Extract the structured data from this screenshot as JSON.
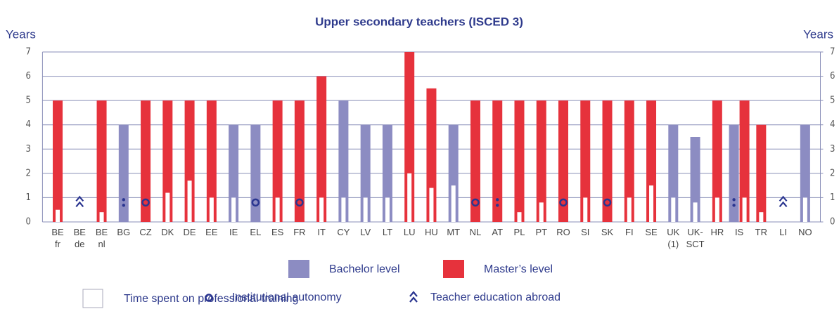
{
  "chart_data": {
    "type": "bar",
    "title": "Upper secondary teachers (ISCED 3)",
    "y_label": "Years",
    "y2_label": "Years",
    "categories": [
      [
        "BE",
        "fr"
      ],
      [
        "BE",
        "de"
      ],
      [
        "BE",
        "nl"
      ],
      [
        "BG"
      ],
      [
        "CZ"
      ],
      [
        "DK"
      ],
      [
        "DE"
      ],
      [
        "EE"
      ],
      [
        "IE"
      ],
      [
        "EL"
      ],
      [
        "ES"
      ],
      [
        "FR"
      ],
      [
        "IT"
      ],
      [
        "CY"
      ],
      [
        "LV"
      ],
      [
        "LT"
      ],
      [
        "LU"
      ],
      [
        "HU"
      ],
      [
        "MT"
      ],
      [
        "NL"
      ],
      [
        "AT"
      ],
      [
        "PL"
      ],
      [
        "PT"
      ],
      [
        "RO"
      ],
      [
        "SI"
      ],
      [
        "SK"
      ],
      [
        "FI"
      ],
      [
        "SE"
      ],
      [
        "UK",
        "(1)"
      ],
      [
        "UK-",
        "SCT"
      ],
      [
        "HR"
      ],
      [
        "IS"
      ],
      [
        "TR"
      ],
      [
        "LI"
      ],
      [
        "NO"
      ]
    ],
    "series": [
      {
        "name": "Bachelor level",
        "color": "#8c8cc2",
        "values": [
          null,
          null,
          null,
          4,
          null,
          null,
          null,
          null,
          4,
          4,
          null,
          null,
          null,
          5,
          4,
          4,
          null,
          null,
          4,
          null,
          null,
          null,
          null,
          null,
          null,
          null,
          null,
          null,
          4,
          3.5,
          null,
          4,
          null,
          null,
          4
        ]
      },
      {
        "name": "Master’s level",
        "color": "#e6323c",
        "values": [
          5,
          null,
          5,
          null,
          5,
          5,
          5,
          5,
          null,
          null,
          5,
          5,
          6,
          null,
          null,
          null,
          7,
          5.5,
          null,
          5,
          5,
          5,
          5,
          5,
          5,
          5,
          5,
          5,
          null,
          null,
          5,
          5,
          4,
          null,
          null
        ]
      }
    ],
    "training": {
      "name": "Time spent on professional training",
      "color": "#ffffff",
      "values": [
        0.5,
        null,
        0.4,
        null,
        null,
        1.2,
        1.7,
        1,
        1,
        null,
        1,
        null,
        1,
        1,
        1,
        1,
        2,
        1.4,
        1.5,
        null,
        null,
        0.4,
        0.8,
        null,
        1,
        null,
        1,
        1.5,
        1,
        0.8,
        1,
        1,
        0.4,
        null,
        1
      ]
    },
    "symbols": [
      null,
      "abroad",
      null,
      "not_available",
      "autonomy",
      null,
      null,
      null,
      null,
      "autonomy",
      null,
      "autonomy",
      null,
      null,
      null,
      null,
      null,
      null,
      null,
      "autonomy",
      "not_available",
      null,
      null,
      "autonomy",
      null,
      "autonomy",
      null,
      null,
      null,
      null,
      null,
      "not_available",
      null,
      "abroad",
      null
    ],
    "legend_symbols": [
      {
        "key": "autonomy",
        "name": "Institutional autonomy"
      },
      {
        "key": "abroad",
        "name": "Teacher education abroad"
      }
    ],
    "ylim": [
      0,
      7
    ],
    "yticks": [
      0,
      1,
      2,
      3,
      4,
      5,
      6,
      7
    ],
    "y2lim": [
      0,
      7
    ],
    "y2ticks": [
      0,
      1,
      2,
      3,
      4,
      5,
      6,
      7
    ],
    "grid": true
  }
}
